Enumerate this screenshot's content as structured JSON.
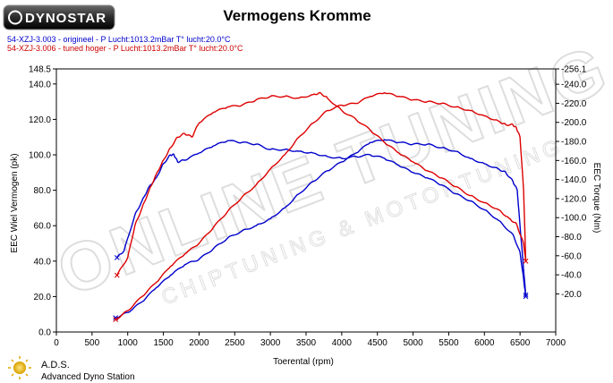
{
  "header": {
    "logo_text": "DYNOSTAR",
    "title": "Vermogens Kromme",
    "info_lines": [
      {
        "text": "54-XZJ-3.003 - origineel  - P Lucht:1013.2mBar T° lucht:20.0°C",
        "color": "#0000cc"
      },
      {
        "text": "54-XZJ-3.006 - tuned hoger  - P Lucht:1013.2mBar T° lucht:20.0°C",
        "color": "#cc0000"
      }
    ]
  },
  "watermark": {
    "line1": "ONLINE TUNING",
    "line2": "CHIPTUNING & MOTORTUNING"
  },
  "footer": {
    "brand": "A.D.S.",
    "subtitle": "Advanced Dyno Station"
  },
  "chart_data": {
    "type": "line",
    "title": "Vermogens Kromme",
    "xlabel": "Toerental (rpm)",
    "ylabel": "EEC Wiel Vermogen (pk)",
    "y2label": "EEC Torque (Nm)",
    "xlim": [
      0,
      7000
    ],
    "ylim": [
      0.0,
      148.5
    ],
    "y2lim": [
      -20.0,
      256.1
    ],
    "grid": false,
    "x_ticks": [
      "0",
      "500",
      "1000",
      "1500",
      "2000",
      "2500",
      "3000",
      "3500",
      "4000",
      "4500",
      "5000",
      "5500",
      "6000",
      "6500",
      "7000"
    ],
    "y_ticks": [
      "0.0",
      "20.0",
      "40.0",
      "60.0",
      "80.0",
      "100.0",
      "120.0",
      "140.0",
      "148.5"
    ],
    "y2_ticks": [
      "-20.0",
      "-40.0",
      "-60.0",
      "-80.0",
      "-100.0",
      "-120.0",
      "-140.0",
      "-160.0",
      "-180.0",
      "-200.0",
      "-220.0",
      "-240.0",
      "-256.1"
    ],
    "series": [
      {
        "name": "54-XZJ-3.003 - origineel",
        "quantity": "power",
        "axis": "left",
        "color": "#0000cc",
        "x": [
          830,
          1000,
          1200,
          1400,
          1600,
          1800,
          2000,
          2200,
          2400,
          2600,
          2800,
          3000,
          3200,
          3400,
          3600,
          3800,
          4000,
          4200,
          4400,
          4600,
          4800,
          5000,
          5200,
          5400,
          5600,
          5800,
          6000,
          6200,
          6300,
          6400,
          6460,
          6500,
          6550,
          6580
        ],
        "y": [
          8.0,
          11.0,
          17.0,
          25.0,
          32.0,
          38.0,
          41.0,
          47.0,
          53.0,
          57.0,
          60.0,
          64.0,
          70.0,
          78.0,
          85.0,
          91.0,
          96.0,
          101.0,
          107.0,
          108.5,
          107.0,
          106.0,
          106.0,
          104.0,
          102.0,
          98.0,
          95.0,
          92.0,
          90.0,
          85.0,
          80.0,
          60.0,
          35.0,
          21.0
        ]
      },
      {
        "name": "54-XZJ-3.003 - origineel",
        "quantity": "torque",
        "axis": "right",
        "color": "#0000cc",
        "x": [
          850,
          950,
          1100,
          1200,
          1300,
          1400,
          1500,
          1600,
          1650,
          1700,
          1800,
          2000,
          2200,
          2400,
          2600,
          2800,
          3000,
          3200,
          3400,
          3600,
          3800,
          4000,
          4200,
          4400,
          4600,
          4800,
          5000,
          5200,
          5400,
          5600,
          5800,
          6000,
          6200,
          6400,
          6500,
          6550,
          6580
        ],
        "y": [
          42.0,
          46.0,
          66.0,
          74.0,
          82.0,
          87.0,
          95.0,
          100.0,
          100.0,
          96.0,
          97.0,
          101.0,
          105.0,
          108.0,
          107.0,
          106.0,
          103.0,
          103.0,
          102.0,
          101.0,
          99.0,
          98.0,
          99.0,
          100.0,
          98.0,
          94.0,
          90.0,
          87.0,
          83.0,
          78.0,
          74.0,
          69.0,
          63.0,
          55.0,
          45.0,
          30.0,
          20.0
        ]
      },
      {
        "name": "54-XZJ-3.006 - tuned hoger",
        "quantity": "power",
        "axis": "left",
        "color": "#dd0000",
        "x": [
          830,
          1000,
          1200,
          1400,
          1600,
          1800,
          2000,
          2200,
          2400,
          2600,
          2800,
          3000,
          3200,
          3400,
          3600,
          3800,
          4000,
          4200,
          4400,
          4600,
          4800,
          5000,
          5200,
          5400,
          5600,
          5800,
          6000,
          6200,
          6300,
          6400,
          6450,
          6500,
          6550,
          6580
        ],
        "y": [
          7.0,
          12.0,
          20.0,
          28.0,
          37.0,
          44.0,
          50.0,
          59.0,
          68.0,
          76.0,
          83.0,
          92.0,
          100.0,
          110.0,
          118.0,
          125.0,
          128.0,
          129.0,
          133.0,
          135.0,
          133.0,
          131.0,
          130.0,
          129.0,
          127.0,
          125.0,
          122.0,
          119.0,
          117.0,
          117.0,
          115.0,
          110.0,
          80.0,
          40.0
        ]
      },
      {
        "name": "54-XZJ-3.006 - tuned hoger",
        "quantity": "torque",
        "axis": "right",
        "color": "#dd0000",
        "x": [
          850,
          1000,
          1100,
          1200,
          1300,
          1400,
          1500,
          1600,
          1700,
          1800,
          1900,
          2000,
          2200,
          2400,
          2600,
          2800,
          3000,
          3200,
          3400,
          3600,
          3700,
          3800,
          4000,
          4200,
          4400,
          4600,
          4800,
          5000,
          5200,
          5400,
          5600,
          5800,
          6000,
          6200,
          6350,
          6450,
          6550,
          6580
        ],
        "y": [
          32.0,
          42.0,
          60.0,
          70.0,
          80.0,
          89.0,
          97.0,
          104.0,
          110.0,
          112.0,
          110.0,
          118.0,
          124.0,
          127.0,
          128.0,
          131.0,
          133.0,
          133.0,
          132.0,
          134.0,
          135.0,
          132.0,
          125.0,
          120.0,
          114.0,
          107.0,
          101.0,
          96.0,
          91.0,
          87.0,
          82.0,
          77.0,
          73.0,
          69.0,
          64.0,
          61.0,
          50.0,
          40.0
        ]
      }
    ]
  }
}
